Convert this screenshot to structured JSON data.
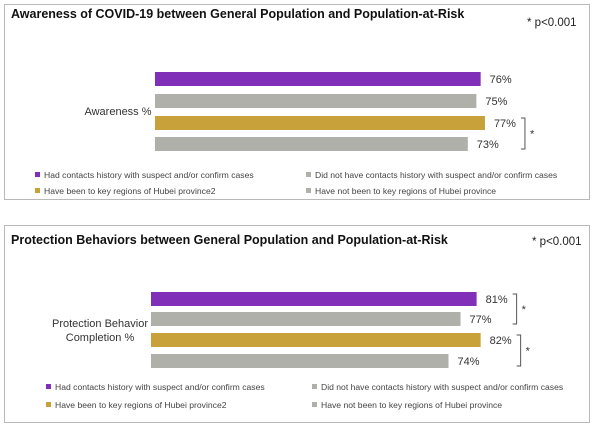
{
  "colors": {
    "contacts": "#7f2fb8",
    "no_contacts": "#b0b0ab",
    "hubei": "#c9a13a",
    "no_hubei": "#b0b0ab"
  },
  "legend": [
    {
      "label": "Had contacts history with suspect and/or confirm cases",
      "color_key": "contacts"
    },
    {
      "label": "Did not have contacts history with suspect and/or confirm cases",
      "color_key": "no_contacts"
    },
    {
      "label": "Have been to key regions of Hubei province2",
      "color_key": "hubei"
    },
    {
      "label": "Have not been to key regions of Hubei province",
      "color_key": "no_hubei"
    }
  ],
  "chart_data": [
    {
      "type": "bar",
      "orientation": "horizontal",
      "title": "Awareness of COVID-19 between General Population and Population-at-Risk",
      "significance_note": "* p<0.001",
      "category": "Awareness %",
      "xlim": [
        0,
        100
      ],
      "series": [
        {
          "name": "Had contacts history with suspect and/or confirm cases",
          "value": 76,
          "label": "76%",
          "color_key": "contacts"
        },
        {
          "name": "Did not have contacts history with suspect and/or confirm cases",
          "value": 75,
          "label": "75%",
          "color_key": "no_contacts"
        },
        {
          "name": "Have been to key regions of Hubei province2",
          "value": 77,
          "label": "77%",
          "color_key": "hubei"
        },
        {
          "name": "Have not been to key regions of Hubei province",
          "value": 73,
          "label": "73%",
          "color_key": "no_hubei"
        }
      ],
      "significance_brackets": [
        {
          "between": [
            2,
            3
          ],
          "mark": "*"
        }
      ]
    },
    {
      "type": "bar",
      "orientation": "horizontal",
      "title": "Protection Behaviors between General Population and Population-at-Risk",
      "significance_note": "* p<0.001",
      "category": "Protection Behavior Completion %",
      "xlim": [
        0,
        100
      ],
      "series": [
        {
          "name": "Had contacts history with suspect and/or confirm cases",
          "value": 81,
          "label": "81%",
          "color_key": "contacts"
        },
        {
          "name": "Did not have contacts history with suspect and/or confirm cases",
          "value": 77,
          "label": "77%",
          "color_key": "no_contacts"
        },
        {
          "name": "Have been to key regions of Hubei province2",
          "value": 82,
          "label": "82%",
          "color_key": "hubei"
        },
        {
          "name": "Have not been to key regions of Hubei province",
          "value": 74,
          "label": "74%",
          "color_key": "no_hubei"
        }
      ],
      "significance_brackets": [
        {
          "between": [
            0,
            1
          ],
          "mark": "*"
        },
        {
          "between": [
            2,
            3
          ],
          "mark": "*"
        }
      ]
    }
  ]
}
